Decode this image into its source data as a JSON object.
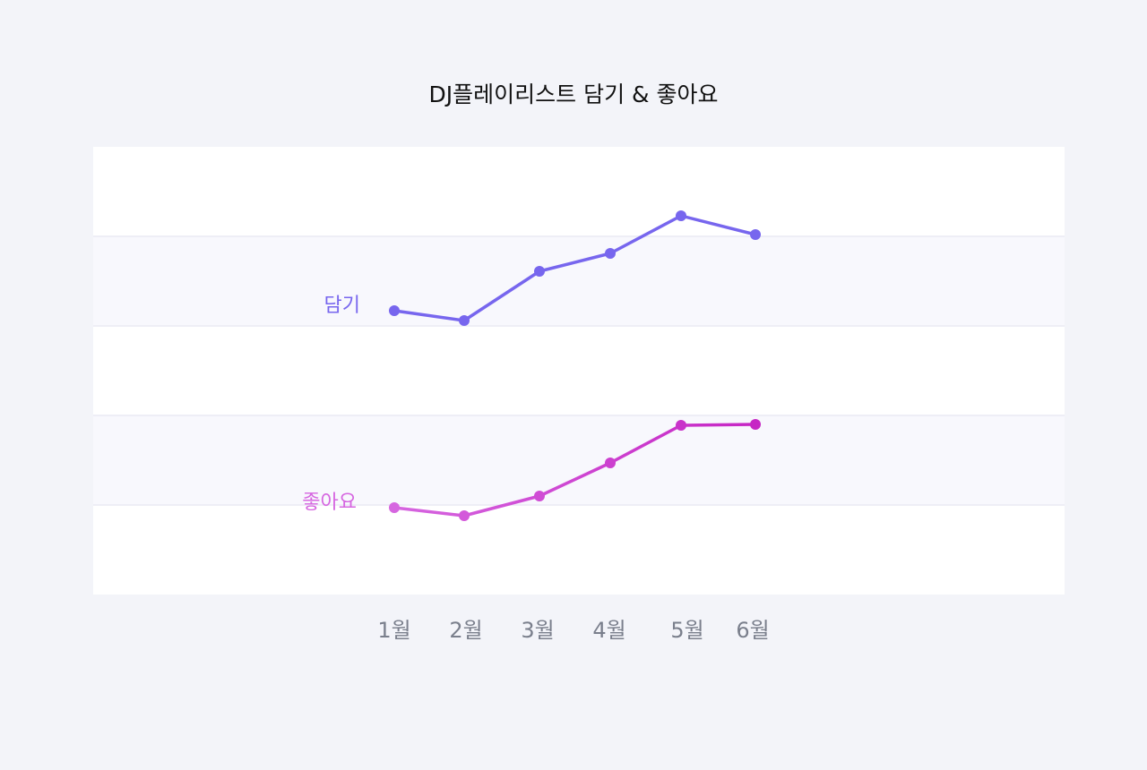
{
  "chart_data": {
    "type": "line",
    "title": "DJ플레이리스트 담기 & 좋아요",
    "categories": [
      "1월",
      "2월",
      "3월",
      "4월",
      "5월",
      "6월"
    ],
    "series": [
      {
        "name": "담기",
        "values": [
          347,
          358,
          303,
          283,
          241,
          262
        ],
        "color": "#7766ee"
      },
      {
        "name": "좋아요",
        "values": [
          567,
          576,
          554,
          517,
          475,
          474
        ],
        "color_start": "#d666e0",
        "color_end": "#c626c4"
      }
    ],
    "ylim": [
      164,
      664
    ],
    "y_inverted": true,
    "y_axis_labels_shown": false,
    "grid": "alternating horizontal bands",
    "band_colors": [
      "#ffffff",
      "#f8f8fd"
    ]
  }
}
